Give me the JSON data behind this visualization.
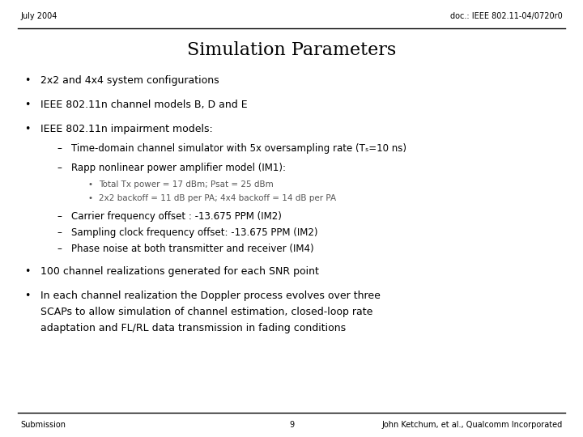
{
  "header_left": "July 2004",
  "header_right": "doc.: IEEE 802.11-04/0720r0",
  "title": "Simulation Parameters",
  "footer_left": "Submission",
  "footer_center": "9",
  "footer_right": "John Ketchum, et al., Qualcomm Incorporated",
  "bg_color": "#ffffff",
  "text_color": "#000000",
  "gray_color": "#555555",
  "bullet1": "2x2 and 4x4 system configurations",
  "bullet2": "IEEE 802.11n channel models B, D and E",
  "bullet3": "IEEE 802.11n impairment models:",
  "sub1": "Time-domain channel simulator with 5x oversampling rate (Tₛ=10 ns)",
  "sub2": "Rapp nonlinear power amplifier model (IM1):",
  "subsub1": "Total Tx power = 17 dBm; Psat = 25 dBm",
  "subsub2": "2x2 backoff = 11 dB per PA; 4x4 backoff = 14 dB per PA",
  "sub3": "Carrier frequency offset : -13.675 PPM (IM2)",
  "sub4": "Sampling clock frequency offset: -13.675 PPM (IM2)",
  "sub5": "Phase noise at both transmitter and receiver (IM4)",
  "bullet4": "100 channel realizations generated for each SNR point",
  "bullet5_line1": "In each channel realization the Doppler process evolves over three",
  "bullet5_line2": "SCAPs to allow simulation of channel estimation, closed-loop rate",
  "bullet5_line3": "adaptation and FL/RL data transmission in fading conditions",
  "title_fontsize": 16,
  "header_fontsize": 7,
  "footer_fontsize": 7,
  "bullet_fontsize": 9,
  "sub_fontsize": 8.5,
  "subsub_fontsize": 7.5
}
